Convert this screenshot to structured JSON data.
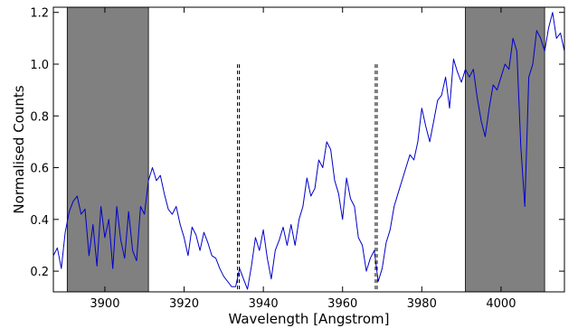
{
  "chart_data": {
    "type": "line",
    "title": "",
    "xlabel": "Wavelength [Angstrom]",
    "ylabel": "Normalised Counts",
    "xlim": [
      3887,
      4016
    ],
    "ylim": [
      0.12,
      1.22
    ],
    "xticks": [
      3900,
      3920,
      3940,
      3960,
      3980,
      4000
    ],
    "yticks": [
      0.2,
      0.4,
      0.6,
      0.8,
      1.0,
      1.2
    ],
    "xtick_labels": [
      "3900",
      "3920",
      "3940",
      "3960",
      "3980",
      "4000"
    ],
    "ytick_labels": [
      "0.2",
      "0.4",
      "0.6",
      "0.8",
      "1.0",
      "1.2"
    ],
    "grid": false,
    "shaded_regions": [
      {
        "x0": 3890.5,
        "x1": 3911,
        "color": "#808080"
      },
      {
        "x0": 3991,
        "x1": 4011,
        "color": "#808080"
      }
    ],
    "vlines": [
      {
        "x": 3933.7,
        "y0": 0.13,
        "y1": 1.01,
        "color": "#000000",
        "style": "dashed"
      },
      {
        "x": 3968.5,
        "y0": 0.13,
        "y1": 1.01,
        "color": "#000000",
        "style": "dashed"
      }
    ],
    "series": [
      {
        "color": "#0000cc",
        "x": [
          3887,
          3888,
          3889,
          3890,
          3891,
          3892,
          3893,
          3894,
          3895,
          3896,
          3897,
          3898,
          3899,
          3900,
          3901,
          3902,
          3903,
          3904,
          3905,
          3906,
          3907,
          3908,
          3909,
          3910,
          3911,
          3912,
          3913,
          3914,
          3915,
          3916,
          3917,
          3918,
          3919,
          3920,
          3921,
          3922,
          3923,
          3924,
          3925,
          3926,
          3927,
          3928,
          3929,
          3930,
          3931,
          3932,
          3933,
          3934,
          3935,
          3936,
          3937,
          3938,
          3939,
          3940,
          3941,
          3942,
          3943,
          3944,
          3945,
          3946,
          3947,
          3948,
          3949,
          3950,
          3951,
          3952,
          3953,
          3954,
          3955,
          3956,
          3957,
          3958,
          3959,
          3960,
          3961,
          3962,
          3963,
          3964,
          3965,
          3966,
          3967,
          3968,
          3969,
          3970,
          3971,
          3972,
          3973,
          3974,
          3975,
          3976,
          3977,
          3978,
          3979,
          3980,
          3981,
          3982,
          3983,
          3984,
          3985,
          3986,
          3987,
          3988,
          3989,
          3990,
          3991,
          3992,
          3993,
          3994,
          3995,
          3996,
          3997,
          3998,
          3999,
          4000,
          4001,
          4002,
          4003,
          4004,
          4005,
          4006,
          4007,
          4008,
          4009,
          4010,
          4011,
          4012,
          4013,
          4014,
          4015,
          4016
        ],
        "y": [
          0.26,
          0.29,
          0.21,
          0.35,
          0.43,
          0.47,
          0.49,
          0.42,
          0.44,
          0.26,
          0.38,
          0.22,
          0.45,
          0.33,
          0.4,
          0.21,
          0.45,
          0.32,
          0.25,
          0.43,
          0.28,
          0.24,
          0.45,
          0.42,
          0.55,
          0.6,
          0.55,
          0.57,
          0.5,
          0.44,
          0.42,
          0.45,
          0.38,
          0.33,
          0.26,
          0.37,
          0.34,
          0.28,
          0.35,
          0.31,
          0.26,
          0.25,
          0.21,
          0.18,
          0.16,
          0.14,
          0.14,
          0.21,
          0.17,
          0.13,
          0.22,
          0.33,
          0.28,
          0.36,
          0.25,
          0.17,
          0.28,
          0.32,
          0.37,
          0.3,
          0.38,
          0.3,
          0.4,
          0.45,
          0.56,
          0.49,
          0.52,
          0.63,
          0.6,
          0.7,
          0.67,
          0.55,
          0.5,
          0.4,
          0.56,
          0.48,
          0.45,
          0.33,
          0.3,
          0.2,
          0.25,
          0.28,
          0.16,
          0.21,
          0.31,
          0.36,
          0.45,
          0.5,
          0.55,
          0.6,
          0.65,
          0.63,
          0.7,
          0.83,
          0.76,
          0.7,
          0.78,
          0.86,
          0.88,
          0.95,
          0.83,
          1.02,
          0.97,
          0.93,
          0.98,
          0.95,
          0.98,
          0.87,
          0.78,
          0.72,
          0.83,
          0.92,
          0.9,
          0.95,
          1.0,
          0.98,
          1.1,
          1.05,
          0.68,
          0.45,
          0.95,
          1.0,
          1.13,
          1.1,
          1.05,
          1.14,
          1.2,
          1.1,
          1.12,
          1.05
        ]
      }
    ]
  }
}
